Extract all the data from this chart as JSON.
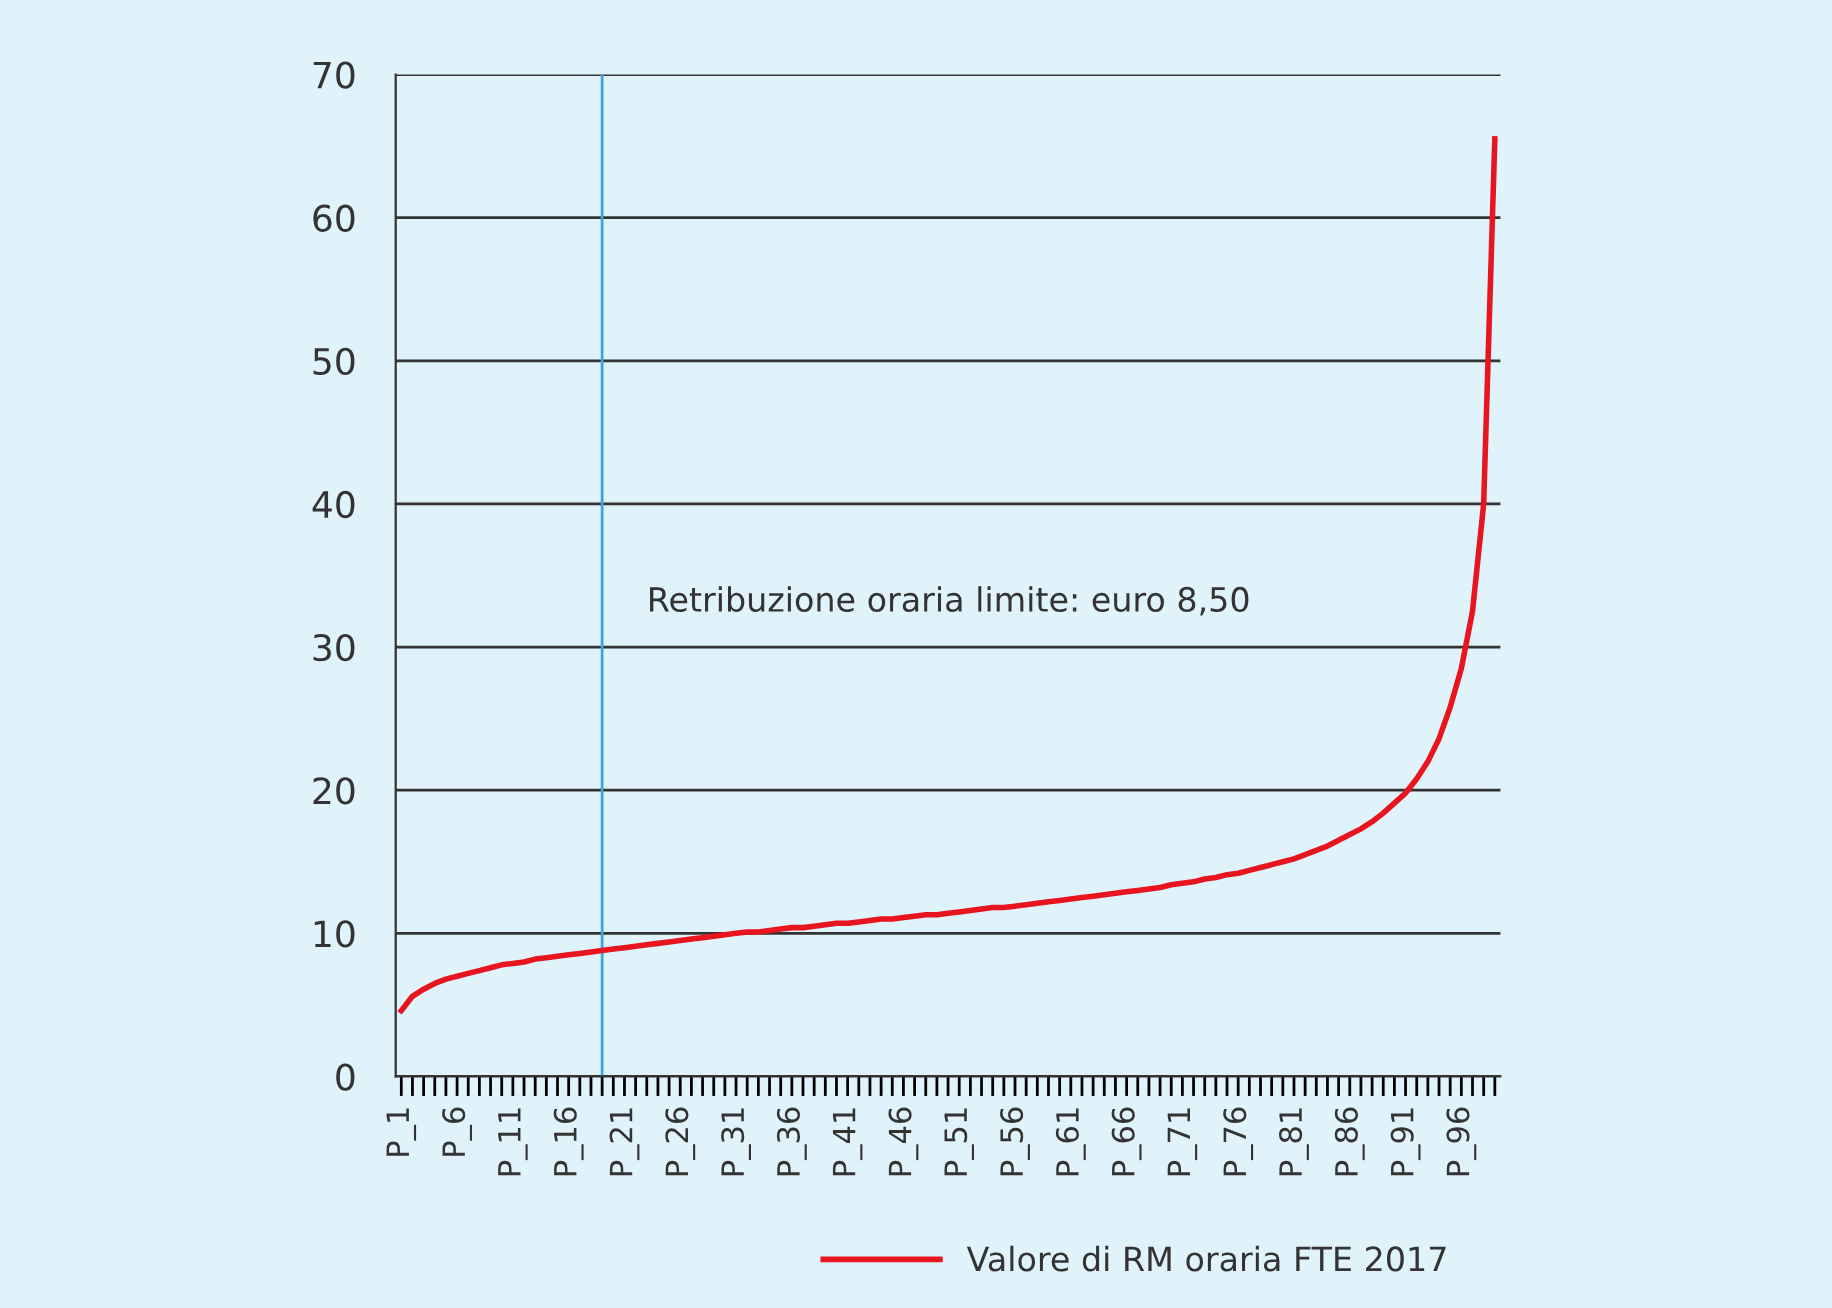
{
  "chart_data": {
    "type": "line",
    "categories": [
      "P_1",
      null,
      null,
      null,
      null,
      "P_6",
      null,
      null,
      null,
      null,
      "P_11",
      null,
      null,
      null,
      null,
      "P_16",
      null,
      null,
      null,
      null,
      "P_21",
      null,
      null,
      null,
      null,
      "P_26",
      null,
      null,
      null,
      null,
      "P_31",
      null,
      null,
      null,
      null,
      "P_36",
      null,
      null,
      null,
      null,
      "P_41",
      null,
      null,
      null,
      null,
      "P_46",
      null,
      null,
      null,
      null,
      "P_51",
      null,
      null,
      null,
      null,
      "P_56",
      null,
      null,
      null,
      null,
      "P_61",
      null,
      null,
      null,
      null,
      "P_66",
      null,
      null,
      null,
      null,
      "P_71",
      null,
      null,
      null,
      null,
      "P_76",
      null,
      null,
      null,
      null,
      "P_81",
      null,
      null,
      null,
      null,
      "P_86",
      null,
      null,
      null,
      null,
      "P_91",
      null,
      null,
      null,
      null,
      "P_96",
      null,
      null,
      null
    ],
    "series": [
      {
        "name": "Valore di RM oraria FTE 2017",
        "color": "#e8141e",
        "values": [
          4.6,
          5.6,
          6.1,
          6.5,
          6.8,
          7.0,
          7.2,
          7.4,
          7.6,
          7.8,
          7.9,
          8.0,
          8.2,
          8.3,
          8.4,
          8.5,
          8.6,
          8.7,
          8.8,
          8.9,
          9.0,
          9.1,
          9.2,
          9.3,
          9.4,
          9.5,
          9.6,
          9.7,
          9.8,
          9.9,
          10.0,
          10.1,
          10.1,
          10.2,
          10.3,
          10.4,
          10.4,
          10.5,
          10.6,
          10.7,
          10.7,
          10.8,
          10.9,
          11.0,
          11.0,
          11.1,
          11.2,
          11.3,
          11.3,
          11.4,
          11.5,
          11.6,
          11.7,
          11.8,
          11.8,
          11.9,
          12.0,
          12.1,
          12.2,
          12.3,
          12.4,
          12.5,
          12.6,
          12.7,
          12.8,
          12.9,
          13.0,
          13.1,
          13.2,
          13.4,
          13.5,
          13.6,
          13.8,
          13.9,
          14.1,
          14.2,
          14.4,
          14.6,
          14.8,
          15.0,
          15.2,
          15.5,
          15.8,
          16.1,
          16.5,
          16.9,
          17.3,
          17.8,
          18.4,
          19.1,
          19.8,
          20.8,
          22.0,
          23.6,
          25.8,
          28.5,
          32.5,
          40,
          65.5
        ]
      }
    ],
    "ylim": [
      0,
      70
    ],
    "yticks": [
      0,
      10,
      20,
      30,
      40,
      50,
      60,
      70
    ],
    "grid": "y",
    "legend": "bottom",
    "marker": "none",
    "line_style": "solid",
    "annotations": [
      "Retribuzione oraria limite: euro 8,50"
    ]
  }
}
